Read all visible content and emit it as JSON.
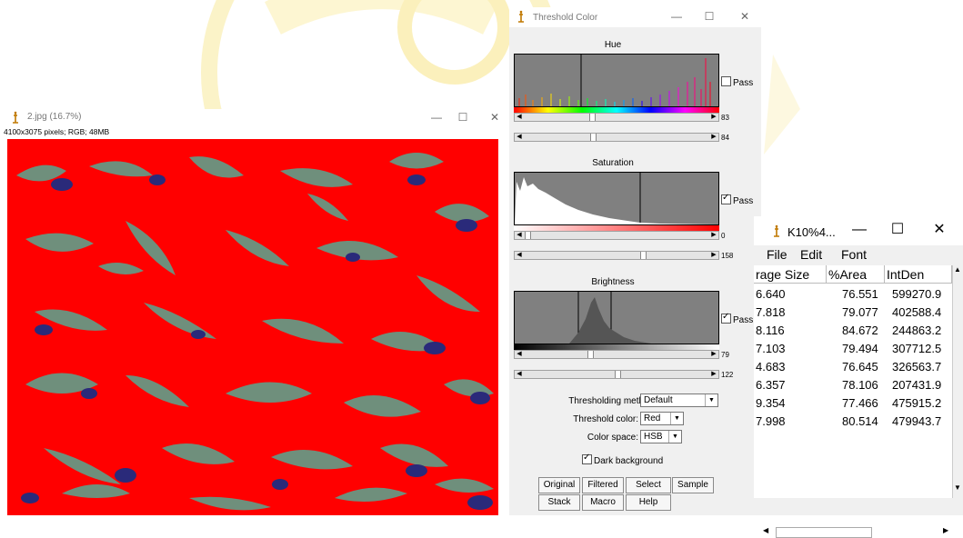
{
  "image_window": {
    "title": "2.jpg (16.7%)",
    "info": "4100x3075 pixels; RGB; 48MB",
    "controls": {
      "minimize": "—",
      "maximize": "☐",
      "close": "✕"
    }
  },
  "threshold_window": {
    "title": "Threshold Color",
    "controls": {
      "minimize": "—",
      "maximize": "☐",
      "close": "✕"
    },
    "hue": {
      "label": "Hue",
      "pass_label": "Pass",
      "pass_checked": false,
      "min": "83",
      "max": "84"
    },
    "saturation": {
      "label": "Saturation",
      "pass_label": "Pass",
      "pass_checked": true,
      "min": "0",
      "max": "158"
    },
    "brightness": {
      "label": "Brightness",
      "pass_label": "Pass",
      "pass_checked": true,
      "min": "79",
      "max": "122"
    },
    "method_label": "Thresholding method:",
    "method_value": "Default",
    "color_label": "Threshold color:",
    "color_value": "Red",
    "space_label": "Color space:",
    "space_value": "HSB",
    "dark_bg_label": "Dark background",
    "dark_bg_checked": true,
    "buttons": [
      "Original",
      "Filtered",
      "Select",
      "Sample",
      "Stack",
      "Macro",
      "Help"
    ]
  },
  "results_window": {
    "title": "K10%4...",
    "controls": {
      "minimize": "—",
      "maximize": "☐",
      "close": "✕"
    },
    "menu": [
      "File",
      "Edit",
      "Font"
    ],
    "columns": [
      "rage Size",
      "%Area",
      "IntDen"
    ],
    "rows": [
      [
        "6.640",
        "76.551",
        "599270.9"
      ],
      [
        "7.818",
        "79.077",
        "402588.4"
      ],
      [
        "8.116",
        "84.672",
        "244863.2"
      ],
      [
        "7.103",
        "79.494",
        "307712.5"
      ],
      [
        "4.683",
        "76.645",
        "326563.7"
      ],
      [
        "6.357",
        "78.106",
        "207431.9"
      ],
      [
        "9.354",
        "77.466",
        "475915.2"
      ],
      [
        "7.998",
        "80.514",
        "479943.7"
      ]
    ]
  },
  "colors": {
    "threshold_red": "#ff0000",
    "histogram_gray": "#808080",
    "grain_green": "#6f8f7c",
    "grain_blue": "#2a2a7a"
  }
}
